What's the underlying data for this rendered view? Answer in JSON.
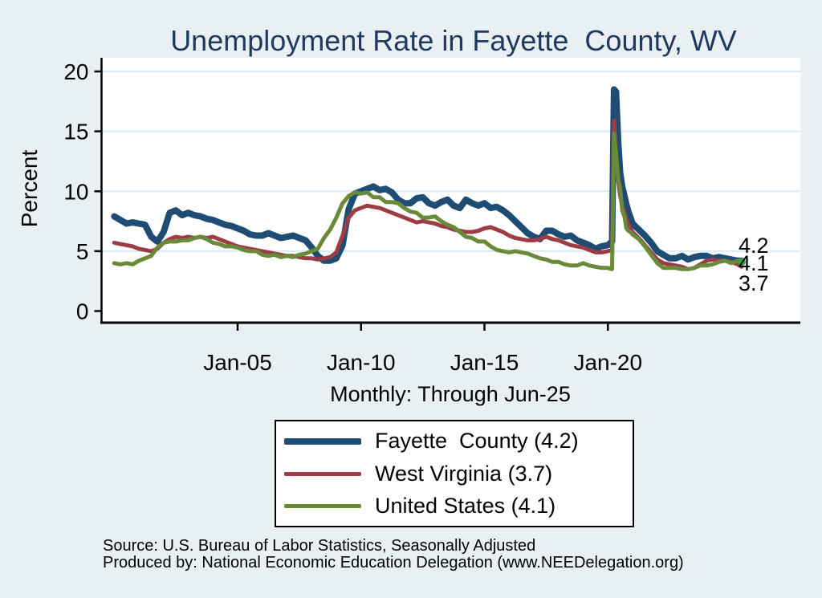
{
  "chart": {
    "title": "Unemployment Rate in Fayette  County, WV",
    "subtitle": "Monthly: Through Jun-25",
    "ylabel": "Percent",
    "end_labels": [
      {
        "series": "Fayette County",
        "text": "4.2"
      },
      {
        "series": "United States",
        "text": "4.1"
      },
      {
        "series": "West Virginia",
        "text": "3.7"
      }
    ],
    "source_line1": "Source: U.S. Bureau of Labor Statistics, Seasonally Adjusted",
    "source_line2": "Produced by: National Economic Education Delegation (www.NEEDelegation.org)"
  },
  "legend": {
    "entries": [
      {
        "label": "Fayette  County (4.2)"
      },
      {
        "label": "West Virginia (3.7)"
      },
      {
        "label": "United States (4.1)"
      }
    ]
  },
  "colors": {
    "background": "#e9f0f3",
    "plot_bg": "#ffffff",
    "grid": "#dce9f2",
    "axis": "#000000",
    "title": "#21395f",
    "fayette_blue": "#1e4c73",
    "wv_maroon": "#9e3c46",
    "us_green": "#698a38",
    "end_marker_green": "#3da045"
  },
  "chart_data": {
    "type": "line",
    "title": "Unemployment Rate in Fayette  County, WV",
    "subtitle": "Monthly: Through Jun-25",
    "xlabel": "",
    "ylabel": "Percent",
    "grid": true,
    "legend_position": "bottom",
    "ylim": [
      0,
      21.1
    ],
    "xlim": [
      1999.45,
      2027.8
    ],
    "y_ticks": [
      0,
      5,
      10,
      15,
      20
    ],
    "x_ticks": [
      {
        "label": "Jan-05",
        "t": 2005
      },
      {
        "label": "Jan-10",
        "t": 2010
      },
      {
        "label": "Jan-15",
        "t": 2015
      },
      {
        "label": "Jan-20",
        "t": 2020
      }
    ],
    "x": [
      2000,
      2000.25,
      2000.5,
      2000.75,
      2001,
      2001.25,
      2001.5,
      2001.75,
      2002,
      2002.25,
      2002.5,
      2002.75,
      2003,
      2003.25,
      2003.5,
      2003.75,
      2004,
      2004.25,
      2004.5,
      2004.75,
      2005,
      2005.25,
      2005.5,
      2005.75,
      2006,
      2006.25,
      2006.5,
      2006.75,
      2007,
      2007.25,
      2007.5,
      2007.75,
      2008,
      2008.25,
      2008.5,
      2008.75,
      2009,
      2009.25,
      2009.5,
      2009.75,
      2010,
      2010.25,
      2010.5,
      2010.75,
      2011,
      2011.25,
      2011.5,
      2011.75,
      2012,
      2012.25,
      2012.5,
      2012.75,
      2013,
      2013.25,
      2013.5,
      2013.75,
      2014,
      2014.25,
      2014.5,
      2014.75,
      2015,
      2015.25,
      2015.5,
      2015.75,
      2016,
      2016.25,
      2016.5,
      2016.75,
      2017,
      2017.25,
      2017.5,
      2017.75,
      2018,
      2018.25,
      2018.5,
      2018.75,
      2019,
      2019.25,
      2019.5,
      2019.75,
      2020,
      2020.17,
      2020.25,
      2020.33,
      2020.42,
      2020.5,
      2020.58,
      2020.67,
      2020.75,
      2020.83,
      2020.92,
      2021,
      2021.25,
      2021.5,
      2021.75,
      2022,
      2022.25,
      2022.5,
      2022.75,
      2023,
      2023.25,
      2023.5,
      2023.75,
      2024,
      2024.25,
      2024.5,
      2024.75,
      2025,
      2025.25,
      2025.42
    ],
    "series": [
      {
        "name": "Fayette County",
        "final_value": 4.2,
        "color": "#1e4c73",
        "line_width": 8,
        "end_marker": false,
        "values": [
          7.9,
          7.6,
          7.3,
          7.4,
          7.3,
          7.2,
          6.2,
          5.8,
          6.6,
          8.2,
          8.4,
          8.0,
          8.2,
          8.0,
          7.9,
          7.7,
          7.6,
          7.4,
          7.2,
          7.1,
          6.9,
          6.7,
          6.4,
          6.3,
          6.3,
          6.5,
          6.3,
          6.1,
          6.2,
          6.3,
          6.1,
          5.9,
          5.3,
          4.6,
          4.2,
          4.2,
          4.4,
          5.5,
          8.5,
          9.8,
          10.0,
          10.2,
          10.4,
          10.1,
          10.2,
          9.9,
          9.3,
          9.0,
          9.0,
          9.4,
          9.5,
          9.0,
          8.8,
          9.1,
          9.3,
          8.8,
          8.6,
          9.3,
          9.0,
          8.8,
          9.0,
          8.6,
          8.7,
          8.4,
          8.0,
          7.5,
          7.0,
          6.5,
          6.2,
          6.0,
          6.7,
          6.7,
          6.4,
          6.2,
          6.3,
          5.9,
          5.7,
          5.5,
          5.2,
          5.4,
          5.5,
          5.8,
          18.5,
          18.3,
          14.0,
          11.5,
          10.4,
          9.6,
          8.9,
          8.3,
          7.8,
          7.3,
          6.8,
          6.3,
          5.7,
          5.0,
          4.7,
          4.4,
          4.4,
          4.6,
          4.3,
          4.5,
          4.6,
          4.6,
          4.4,
          4.5,
          4.4,
          4.3,
          4.2,
          4.2
        ]
      },
      {
        "name": "West Virginia",
        "final_value": 3.7,
        "color": "#9e3c46",
        "line_width": 5,
        "end_marker": false,
        "values": [
          5.7,
          5.6,
          5.5,
          5.4,
          5.2,
          5.1,
          5.0,
          5.2,
          5.7,
          6.0,
          6.2,
          6.1,
          6.2,
          6.1,
          6.2,
          6.1,
          6.2,
          6.0,
          5.8,
          5.6,
          5.4,
          5.3,
          5.2,
          5.1,
          5.0,
          4.9,
          4.8,
          4.7,
          4.6,
          4.6,
          4.5,
          4.4,
          4.4,
          4.3,
          4.4,
          4.5,
          4.9,
          6.3,
          7.8,
          8.4,
          8.6,
          8.8,
          8.7,
          8.6,
          8.4,
          8.2,
          8.0,
          7.8,
          7.6,
          7.4,
          7.5,
          7.4,
          7.3,
          7.1,
          7.0,
          6.8,
          6.7,
          6.6,
          6.6,
          6.7,
          6.9,
          7.0,
          6.8,
          6.6,
          6.3,
          6.1,
          6.0,
          5.9,
          5.9,
          6.0,
          6.2,
          6.0,
          5.9,
          5.7,
          5.5,
          5.4,
          5.3,
          5.1,
          4.9,
          4.9,
          5.0,
          5.1,
          15.9,
          12.9,
          10.8,
          9.6,
          8.8,
          8.2,
          7.7,
          7.2,
          6.9,
          6.6,
          6.1,
          5.5,
          4.9,
          4.3,
          4.0,
          3.9,
          3.8,
          3.7,
          3.5,
          3.6,
          3.9,
          4.2,
          4.3,
          4.2,
          4.2,
          4.1,
          3.9,
          3.7
        ]
      },
      {
        "name": "United States",
        "final_value": 4.1,
        "color": "#698a38",
        "line_width": 5,
        "end_marker": true,
        "marker_color": "#3da045",
        "values": [
          4.0,
          3.9,
          4.0,
          3.9,
          4.2,
          4.4,
          4.6,
          5.3,
          5.7,
          5.8,
          5.8,
          5.9,
          5.9,
          6.1,
          6.2,
          6.0,
          5.7,
          5.6,
          5.4,
          5.4,
          5.3,
          5.1,
          5.0,
          5.0,
          4.7,
          4.6,
          4.7,
          4.5,
          4.6,
          4.5,
          4.7,
          4.8,
          5.0,
          5.2,
          6.1,
          6.8,
          7.8,
          9.0,
          9.6,
          9.9,
          9.8,
          9.9,
          9.5,
          9.5,
          9.1,
          9.1,
          9.0,
          8.6,
          8.3,
          8.2,
          7.8,
          7.8,
          7.9,
          7.5,
          7.2,
          7.0,
          6.6,
          6.2,
          6.1,
          5.8,
          5.8,
          5.4,
          5.1,
          5.0,
          4.9,
          5.0,
          4.9,
          4.8,
          4.6,
          4.4,
          4.3,
          4.1,
          4.1,
          3.9,
          3.8,
          3.8,
          4.0,
          3.8,
          3.7,
          3.6,
          3.6,
          3.5,
          14.8,
          13.2,
          11.0,
          10.2,
          8.4,
          7.9,
          6.9,
          6.7,
          6.6,
          6.4,
          6.0,
          5.4,
          4.7,
          4.0,
          3.6,
          3.6,
          3.6,
          3.5,
          3.5,
          3.6,
          3.8,
          3.8,
          3.9,
          4.1,
          4.2,
          4.0,
          4.2,
          4.1
        ]
      }
    ]
  }
}
